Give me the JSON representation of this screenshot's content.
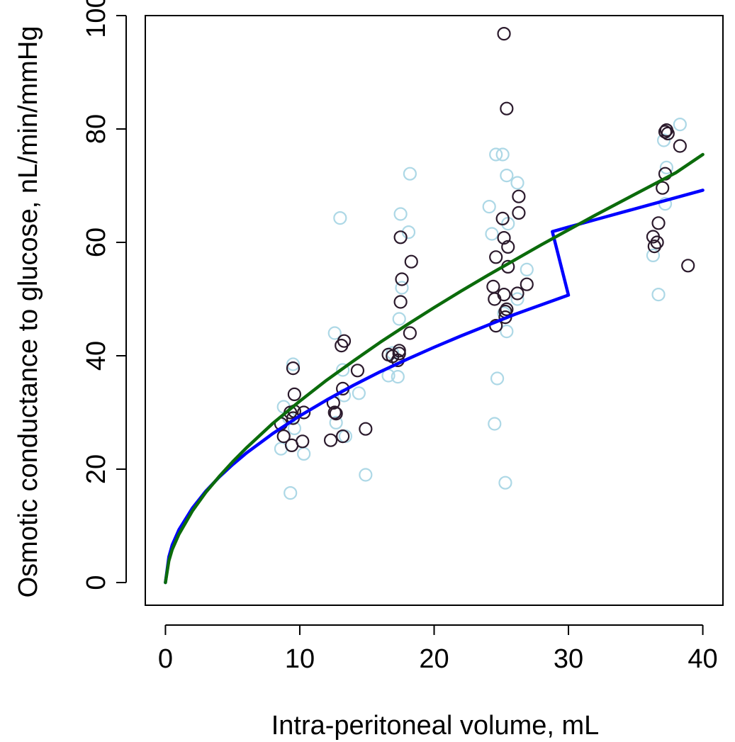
{
  "chart_data": {
    "type": "scatter",
    "title": "",
    "xlabel": "Intra-peritoneal volume, mL",
    "ylabel": "Osmotic conductance to glucose, nL/min/mmHg",
    "xlim": [
      -1.5,
      41.5
    ],
    "ylim": [
      -4,
      100
    ],
    "xticks": [
      "0",
      "10",
      "20",
      "30",
      "40"
    ],
    "yticks": [
      "0",
      "20",
      "40",
      "60",
      "80",
      "100"
    ],
    "grid": false,
    "legend": "none",
    "series": [
      {
        "kind": "points",
        "color": "#add8e6",
        "points": [
          [
            8.8,
            31
          ],
          [
            8.6,
            23.6
          ],
          [
            9.2,
            29
          ],
          [
            9.5,
            38.5
          ],
          [
            9.6,
            27.2
          ],
          [
            9.3,
            15.8
          ],
          [
            10.3,
            22.7
          ],
          [
            12.6,
            44
          ],
          [
            12.7,
            28.2
          ],
          [
            13,
            64.3
          ],
          [
            13.2,
            37.5
          ],
          [
            13.3,
            33
          ],
          [
            14.4,
            33.4
          ],
          [
            13.4,
            25.8
          ],
          [
            14.9,
            19
          ],
          [
            16.6,
            36.5
          ],
          [
            16.9,
            40.5
          ],
          [
            17.3,
            36.3
          ],
          [
            17.4,
            46.5
          ],
          [
            17.6,
            52
          ],
          [
            17.5,
            65
          ],
          [
            18.1,
            61.8
          ],
          [
            18.2,
            72.1
          ],
          [
            24.1,
            66.3
          ],
          [
            24.3,
            61.5
          ],
          [
            24.6,
            75.5
          ],
          [
            25.1,
            75.5
          ],
          [
            24.7,
            36
          ],
          [
            24.5,
            28
          ],
          [
            25.3,
            17.6
          ],
          [
            25.4,
            44.3
          ],
          [
            25.2,
            47.5
          ],
          [
            25.4,
            71.8
          ],
          [
            25.5,
            63.3
          ],
          [
            26.2,
            70.5
          ],
          [
            26.2,
            50
          ],
          [
            26.9,
            55.2
          ],
          [
            36.3,
            57.7
          ],
          [
            36.7,
            50.8
          ],
          [
            37.1,
            78
          ],
          [
            37.3,
            73.2
          ],
          [
            37.2,
            66.8
          ],
          [
            38.3,
            80.8
          ]
        ]
      },
      {
        "kind": "points",
        "color": "#2b1a2c",
        "points": [
          [
            8.6,
            28
          ],
          [
            8.8,
            25.8
          ],
          [
            9.3,
            30
          ],
          [
            9.4,
            24.2
          ],
          [
            9.5,
            29
          ],
          [
            9.6,
            30.2
          ],
          [
            9.5,
            37.8
          ],
          [
            9.6,
            33.2
          ],
          [
            10.2,
            24.9
          ],
          [
            10.3,
            30
          ],
          [
            12.3,
            25.1
          ],
          [
            12.5,
            31.7
          ],
          [
            12.6,
            30
          ],
          [
            12.7,
            29.8
          ],
          [
            13.1,
            41.8
          ],
          [
            13.3,
            42.6
          ],
          [
            13.2,
            34.2
          ],
          [
            13.2,
            25.8
          ],
          [
            14.3,
            37.4
          ],
          [
            14.9,
            27.1
          ],
          [
            16.6,
            40.2
          ],
          [
            16.9,
            39.9
          ],
          [
            17.3,
            39.2
          ],
          [
            17.4,
            40.4
          ],
          [
            17.4,
            40.9
          ],
          [
            17.5,
            49.5
          ],
          [
            17.6,
            53.5
          ],
          [
            17.5,
            60.9
          ],
          [
            18.2,
            44
          ],
          [
            18.3,
            56.6
          ],
          [
            24.4,
            52.2
          ],
          [
            24.5,
            50
          ],
          [
            24.6,
            57.4
          ],
          [
            24.6,
            45.3
          ],
          [
            25.1,
            64.2
          ],
          [
            25.2,
            60.8
          ],
          [
            25.2,
            96.8
          ],
          [
            25.2,
            50.8
          ],
          [
            25.3,
            46.8
          ],
          [
            25.3,
            47.8
          ],
          [
            25.4,
            48.2
          ],
          [
            25.4,
            83.6
          ],
          [
            25.5,
            55.7
          ],
          [
            25.5,
            59.2
          ],
          [
            26.2,
            51
          ],
          [
            26.3,
            65.2
          ],
          [
            26.3,
            68.1
          ],
          [
            26.9,
            52.6
          ],
          [
            36.3,
            61
          ],
          [
            36.4,
            59.3
          ],
          [
            36.6,
            60
          ],
          [
            36.7,
            63.4
          ],
          [
            37,
            69.6
          ],
          [
            37.2,
            72.1
          ],
          [
            37.2,
            79.5
          ],
          [
            37.3,
            79.8
          ],
          [
            37.4,
            79.2
          ],
          [
            38.3,
            77
          ],
          [
            38.9,
            55.9
          ]
        ]
      },
      {
        "kind": "line",
        "color": "#0000ff",
        "points": [
          [
            0,
            0
          ],
          [
            0.25,
            4.5
          ],
          [
            0.5,
            6.6
          ],
          [
            1,
            9.3
          ],
          [
            2,
            13.1
          ],
          [
            3,
            16.1
          ],
          [
            4,
            18.6
          ],
          [
            5,
            20.8
          ],
          [
            6,
            22.8
          ],
          [
            8,
            26.3
          ],
          [
            10,
            29.4
          ],
          [
            12,
            32.2
          ],
          [
            14,
            34.8
          ],
          [
            16,
            37.2
          ],
          [
            18,
            39.4
          ],
          [
            20,
            41.5
          ],
          [
            22,
            43.5
          ],
          [
            24,
            45.4
          ],
          [
            26,
            47.3
          ],
          [
            28,
            49.0
          ],
          [
            30,
            50.7
          ],
          [
            28.8,
            61.9
          ],
          [
            30,
            62.7
          ],
          [
            32,
            64.0
          ],
          [
            34,
            65.3
          ],
          [
            36,
            66.6
          ],
          [
            38,
            67.9
          ],
          [
            40,
            69.2
          ]
        ]
      },
      {
        "kind": "line",
        "color": "#0b6b0b",
        "points": [
          [
            0,
            0
          ],
          [
            0.25,
            3.8
          ],
          [
            0.5,
            5.8
          ],
          [
            1,
            8.5
          ],
          [
            2,
            12.6
          ],
          [
            3,
            15.9
          ],
          [
            4,
            18.7
          ],
          [
            5,
            21.3
          ],
          [
            6,
            23.7
          ],
          [
            8,
            28.1
          ],
          [
            10,
            32.0
          ],
          [
            12,
            35.7
          ],
          [
            14,
            39.1
          ],
          [
            16,
            42.4
          ],
          [
            18,
            45.5
          ],
          [
            20,
            48.5
          ],
          [
            22,
            51.4
          ],
          [
            24,
            54.2
          ],
          [
            26,
            56.9
          ],
          [
            28,
            59.6
          ],
          [
            30,
            62.2
          ],
          [
            32,
            64.8
          ],
          [
            34,
            67.3
          ],
          [
            36,
            69.8
          ],
          [
            38,
            72.3
          ],
          [
            40,
            75.5
          ]
        ]
      }
    ]
  }
}
